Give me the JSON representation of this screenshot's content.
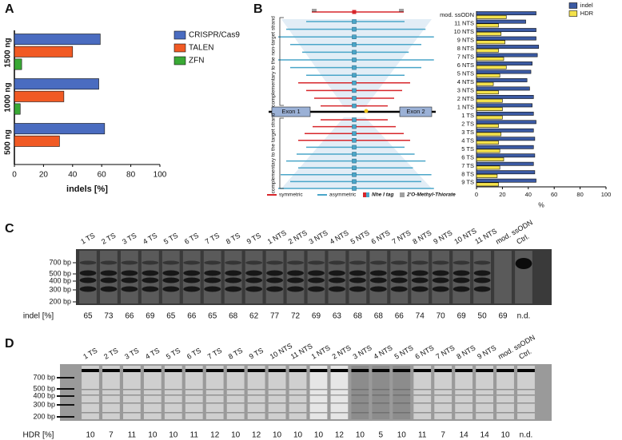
{
  "chart_data": [
    {
      "type": "bar",
      "orientation": "horizontal",
      "panel_label": "A",
      "categories": [
        "1500 ng",
        "1000 ng",
        "500 ng"
      ],
      "series": [
        {
          "name": "CRISPR/Cas9",
          "color": "#4a6cc0",
          "values": [
            59,
            58,
            62
          ]
        },
        {
          "name": "TALEN",
          "color": "#f15a24",
          "values": [
            40,
            34,
            31
          ]
        },
        {
          "name": "ZFN",
          "color": "#39a935",
          "values": [
            5,
            4,
            0
          ]
        }
      ],
      "xlim": [
        0,
        100
      ],
      "xticks": [
        0,
        20,
        40,
        60,
        80,
        100
      ],
      "xlabel": "indels [%]",
      "legend": "right"
    },
    {
      "type": "bar",
      "orientation": "horizontal",
      "panel_label": "B",
      "categories": [
        "mod. ssODN",
        "11 NTS",
        "10 NTS",
        "9 NTS",
        "8 NTS",
        "7 NTS",
        "6 NTS",
        "5 NTS",
        "4 NTS",
        "3 NTS",
        "2 NTS",
        "1 NTS",
        "1 TS",
        "2 TS",
        "3 TS",
        "4 TS",
        "5 TS",
        "6 TS",
        "7 TS",
        "8 TS",
        "9 TS"
      ],
      "series": [
        {
          "name": "indel",
          "color": "#3b5aa3",
          "values": [
            46,
            38,
            46,
            46,
            48,
            47,
            43,
            42,
            39,
            41,
            44,
            43,
            44,
            46,
            44,
            45,
            44,
            45,
            44,
            45,
            46
          ]
        },
        {
          "name": "HDR",
          "color": "#f4e24b",
          "values": [
            23,
            17,
            19,
            22,
            17,
            21,
            23,
            18,
            13,
            17,
            20,
            20,
            20,
            17,
            19,
            17,
            18,
            21,
            18,
            16,
            17
          ]
        }
      ],
      "xlim": [
        0,
        100
      ],
      "xticks": [
        0,
        20,
        40,
        60,
        80,
        100
      ],
      "xlabel": "%",
      "legend": "upper right"
    }
  ],
  "diagram": {
    "upper_strand": "complementary to the non-target strand",
    "lower_strand": "complementary to the target strand",
    "exon1": "Exon 1",
    "exon2": "Exon 2",
    "legend": [
      "symmetric",
      "asymmetric",
      "Nhe I tag",
      "2'O-Methyl-Thiorate"
    ]
  },
  "gel_c": {
    "panel_label": "C",
    "lanes": [
      "1 TS",
      "2 TS",
      "3 TS",
      "4 TS",
      "5 TS",
      "6 TS",
      "7 TS",
      "8 TS",
      "9 TS",
      "1 NTS",
      "2 NTS",
      "3 NTS",
      "4 NTS",
      "5 NTS",
      "6 NTS",
      "7 NTS",
      "8 NTS",
      "9 NTS",
      "10 NTS",
      "11 NTS",
      "mod. ssODN",
      "Ctrl."
    ],
    "ladder": [
      "700 bp",
      "500 bp",
      "400 bp",
      "300 bp",
      "200 bp"
    ],
    "row_label": "indel [%]",
    "values": [
      65,
      73,
      66,
      69,
      65,
      66,
      65,
      68,
      62,
      77,
      72,
      69,
      63,
      68,
      68,
      66,
      74,
      70,
      69,
      50,
      69,
      "n.d."
    ]
  },
  "gel_d": {
    "panel_label": "D",
    "lanes": [
      "1 TS",
      "2 TS",
      "3 TS",
      "4 TS",
      "5 TS",
      "6 TS",
      "7 TS",
      "8 TS",
      "9 TS",
      "10 NTS",
      "11 NTS",
      "1 NTS",
      "2 NTS",
      "3 NTS",
      "4 NTS",
      "5 NTS",
      "6 NTS",
      "7 NTS",
      "8 NTS",
      "9 NTS",
      "mod. ssODN",
      "Ctrl."
    ],
    "ladder": [
      "700 bp",
      "500 bp",
      "400 bp",
      "300 bp",
      "200 bp"
    ],
    "row_label": "HDR [%]",
    "values": [
      10,
      7,
      11,
      10,
      10,
      11,
      12,
      10,
      12,
      10,
      10,
      10,
      12,
      10,
      5,
      10,
      11,
      7,
      14,
      14,
      10,
      "n.d."
    ]
  }
}
